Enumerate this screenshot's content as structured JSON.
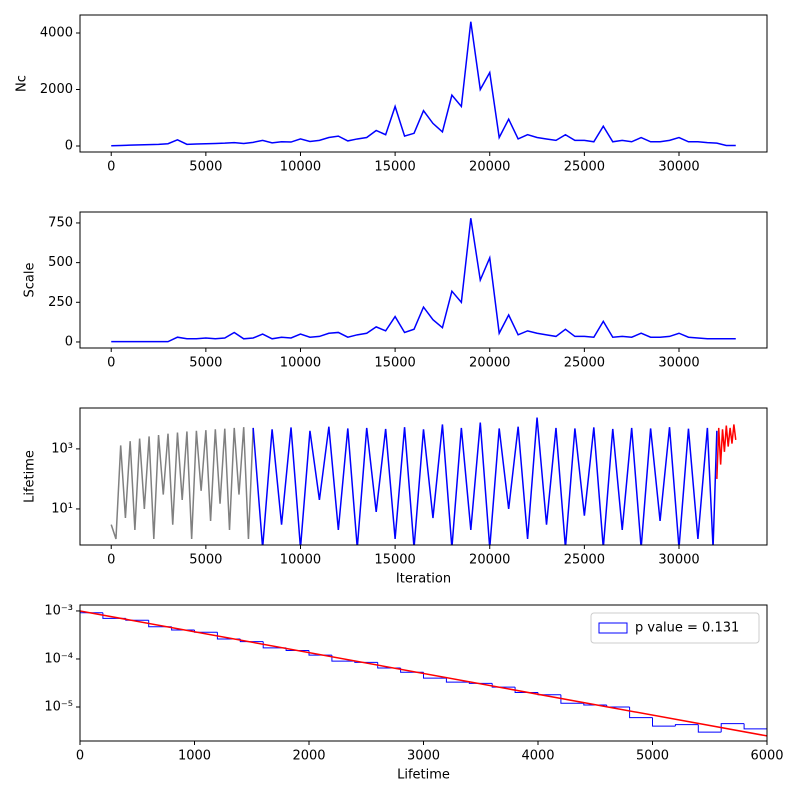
{
  "chart_data": [
    {
      "type": "line",
      "ylabel": "Nc",
      "x": [
        0,
        500,
        1000,
        1500,
        2000,
        2500,
        3000,
        3500,
        4000,
        4500,
        5000,
        5500,
        6000,
        6500,
        7000,
        7500,
        8000,
        8500,
        9000,
        9500,
        10000,
        10500,
        11000,
        11500,
        12000,
        12500,
        13000,
        13500,
        14000,
        14500,
        15000,
        15500,
        16000,
        16500,
        17000,
        17500,
        18000,
        18500,
        19000,
        19500,
        20000,
        20500,
        21000,
        21500,
        22000,
        22500,
        23000,
        23500,
        24000,
        24500,
        25000,
        25500,
        26000,
        26500,
        27000,
        27500,
        28000,
        28500,
        29000,
        29500,
        30000,
        30500,
        31000,
        31500,
        32000,
        32500,
        33000
      ],
      "series": [
        {
          "color": "#0000ff",
          "values": [
            10,
            20,
            30,
            40,
            50,
            60,
            80,
            220,
            60,
            70,
            80,
            90,
            100,
            120,
            90,
            130,
            200,
            110,
            150,
            140,
            250,
            160,
            200,
            300,
            350,
            180,
            250,
            300,
            550,
            400,
            1400,
            350,
            450,
            1250,
            800,
            500,
            1800,
            1400,
            4400,
            2000,
            2600,
            300,
            950,
            250,
            400,
            300,
            250,
            200,
            400,
            200,
            200,
            150,
            700,
            150,
            200,
            150,
            300,
            150,
            150,
            200,
            300,
            150,
            150,
            120,
            100,
            20,
            20
          ]
        }
      ],
      "xlim": [
        -1650,
        34650
      ],
      "xticks": [
        0,
        5000,
        10000,
        15000,
        20000,
        25000,
        30000
      ],
      "ylim": [
        -212,
        4637
      ],
      "yticks": [
        0,
        2000,
        4000
      ]
    },
    {
      "type": "line",
      "ylabel": "Scale",
      "x": [
        0,
        500,
        1000,
        1500,
        2000,
        2500,
        3000,
        3500,
        4000,
        4500,
        5000,
        5500,
        6000,
        6500,
        7000,
        7500,
        8000,
        8500,
        9000,
        9500,
        10000,
        10500,
        11000,
        11500,
        12000,
        12500,
        13000,
        13500,
        14000,
        14500,
        15000,
        15500,
        16000,
        16500,
        17000,
        17500,
        18000,
        18500,
        19000,
        19500,
        20000,
        20500,
        21000,
        21500,
        22000,
        22500,
        23000,
        23500,
        24000,
        24500,
        25000,
        25500,
        26000,
        26500,
        27000,
        27500,
        28000,
        28500,
        29000,
        29500,
        30000,
        30500,
        31000,
        31500,
        32000,
        32500,
        33000
      ],
      "series": [
        {
          "color": "#0000ff",
          "values": [
            2,
            2,
            2,
            2,
            2,
            2,
            2,
            30,
            20,
            20,
            25,
            20,
            25,
            60,
            20,
            25,
            50,
            20,
            30,
            25,
            50,
            30,
            35,
            55,
            60,
            30,
            45,
            55,
            95,
            70,
            160,
            60,
            80,
            220,
            140,
            90,
            320,
            250,
            780,
            390,
            530,
            55,
            170,
            45,
            70,
            55,
            45,
            35,
            80,
            35,
            35,
            30,
            130,
            30,
            35,
            30,
            55,
            30,
            30,
            35,
            55,
            30,
            25,
            20,
            20,
            20,
            20
          ]
        }
      ],
      "xlim": [
        -1650,
        34650
      ],
      "xticks": [
        0,
        5000,
        10000,
        15000,
        20000,
        25000,
        30000
      ],
      "ylim": [
        -38,
        819
      ],
      "yticks": [
        0,
        250,
        500,
        750
      ]
    },
    {
      "type": "line",
      "ylabel": "Lifetime",
      "xlabel": "Iteration",
      "log_y": true,
      "series": [
        {
          "color": "#808080",
          "x": [
            0,
            250,
            500,
            750,
            1000,
            1250,
            1500,
            1750,
            2000,
            2250,
            2500,
            2750,
            3000,
            3250,
            3500,
            3750,
            4000,
            4250,
            4500,
            4750,
            5000,
            5250,
            5500,
            5750,
            6000,
            6250,
            6500,
            6750,
            7000,
            7250,
            7500
          ],
          "values": [
            3,
            1,
            1300,
            5,
            1800,
            2,
            2200,
            10,
            2600,
            1,
            2900,
            30,
            3200,
            3,
            3500,
            20,
            3800,
            1,
            4000,
            40,
            4200,
            4,
            4500,
            15,
            4700,
            2,
            5000,
            30,
            5300,
            1,
            5000
          ]
        },
        {
          "color": "#0000ff",
          "x": [
            7500,
            8000,
            8500,
            9000,
            9500,
            10000,
            10500,
            11000,
            11500,
            12000,
            12500,
            13000,
            13500,
            14000,
            14500,
            15000,
            15500,
            16000,
            16500,
            17000,
            17500,
            18000,
            18500,
            19000,
            19500,
            20000,
            20500,
            21000,
            21500,
            22000,
            22500,
            23000,
            23500,
            24000,
            24500,
            25000,
            25500,
            26000,
            26500,
            27000,
            27500,
            28000,
            28500,
            29000,
            29500,
            30000,
            30500,
            31000,
            31500,
            31800,
            32000
          ],
          "values": [
            5000,
            0.5,
            4500,
            3,
            5200,
            0.5,
            4000,
            20,
            5500,
            2,
            4800,
            0.5,
            5000,
            8,
            4600,
            1,
            5300,
            0.5,
            4500,
            5,
            6500,
            0.5,
            5000,
            2,
            7500,
            0.5,
            4800,
            10,
            5500,
            1,
            11000,
            3,
            5000,
            0.5,
            4800,
            6,
            5200,
            0.5,
            4600,
            2,
            5000,
            0.5,
            4800,
            4,
            5300,
            0.5,
            4700,
            1,
            5000,
            0.5,
            4000
          ]
        },
        {
          "color": "#ff0000",
          "x": [
            32000,
            32100,
            32200,
            32300,
            32400,
            32500,
            32600,
            32700,
            32800,
            32900,
            33000
          ],
          "values": [
            100,
            5000,
            300,
            4500,
            800,
            6000,
            1200,
            5000,
            1500,
            6500,
            2000
          ]
        }
      ],
      "xlim": [
        -1650,
        34650
      ],
      "xticks": [
        0,
        5000,
        10000,
        15000,
        20000,
        25000,
        30000
      ],
      "ylim": [
        0.63,
        23000
      ],
      "yticks": [
        {
          "value": 10,
          "label": "10¹"
        },
        {
          "value": 1000,
          "label": "10³"
        }
      ]
    },
    {
      "type": "histogram",
      "xlabel": "Lifetime",
      "log_y": true,
      "legend": "upper right",
      "bins": [
        0,
        200,
        400,
        600,
        800,
        1000,
        1200,
        1400,
        1600,
        1800,
        2000,
        2200,
        2400,
        2600,
        2800,
        3000,
        3200,
        3400,
        3600,
        3800,
        4000,
        4200,
        4400,
        4600,
        4800,
        5000,
        5200,
        5400,
        5600,
        5800,
        6000
      ],
      "series": [
        {
          "name": "p value = 0.131",
          "color": "#0000ff",
          "values": [
            0.00092,
            0.0007,
            0.00064,
            0.00047,
            0.0004,
            0.00036,
            0.00026,
            0.00023,
            0.00017,
            0.00015,
            0.00012,
            9e-05,
            8.5e-05,
            6.5e-05,
            5.3e-05,
            4e-05,
            3.3e-05,
            3.1e-05,
            2.6e-05,
            2e-05,
            1.8e-05,
            1.2e-05,
            1.1e-05,
            1e-05,
            6e-06,
            4e-06,
            4.3e-06,
            3e-06,
            4.5e-06,
            3.5e-06
          ]
        }
      ],
      "fit": {
        "color": "#ff0000",
        "x": [
          0,
          6000
        ],
        "values": [
          0.001,
          2.5e-06
        ]
      },
      "xlim": [
        0,
        6000
      ],
      "xticks": [
        0,
        1000,
        2000,
        3000,
        4000,
        5000,
        6000
      ],
      "ylim": [
        1.96e-06,
        0.00133
      ],
      "yticks": [
        {
          "value": 0.001,
          "label": "10⁻³"
        },
        {
          "value": 0.0001,
          "label": "10⁻⁴"
        },
        {
          "value": 1e-05,
          "label": "10⁻⁵"
        }
      ]
    }
  ]
}
